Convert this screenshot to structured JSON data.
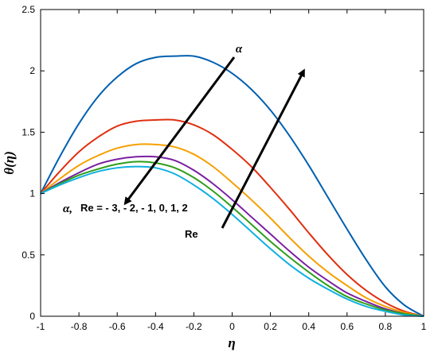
{
  "chart_data": {
    "type": "line",
    "xlabel": "η",
    "ylabel": "θ(η)",
    "xlim": [
      -1,
      1
    ],
    "ylim": [
      0,
      2.5
    ],
    "x_ticks": [
      -1,
      -0.8,
      -0.6,
      -0.4,
      -0.2,
      0,
      0.2,
      0.4,
      0.6,
      0.8,
      1
    ],
    "x_tick_labels": [
      "-1",
      "-0.8",
      "-0.6",
      "-0.4",
      "-0.2",
      "0",
      "0.2",
      "0.4",
      "0.6",
      "0.8",
      "1"
    ],
    "y_ticks": [
      0,
      0.5,
      1,
      1.5,
      2,
      2.5
    ],
    "y_tick_labels": [
      "0",
      "0.5",
      "1",
      "1.5",
      "2",
      "2.5"
    ],
    "grid": false,
    "x": [
      -1,
      -0.9,
      -0.8,
      -0.7,
      -0.6,
      -0.5,
      -0.4,
      -0.3,
      -0.2,
      -0.1,
      0,
      0.1,
      0.2,
      0.3,
      0.4,
      0.5,
      0.6,
      0.7,
      0.8,
      0.9,
      1
    ],
    "series": [
      {
        "color": "#0060B0",
        "values": [
          1.0,
          1.3,
          1.57,
          1.79,
          1.95,
          2.06,
          2.11,
          2.12,
          2.12,
          2.07,
          1.98,
          1.85,
          1.68,
          1.47,
          1.23,
          0.97,
          0.71,
          0.46,
          0.24,
          0.09,
          0.0
        ]
      },
      {
        "color": "#E03010",
        "values": [
          1.0,
          1.18,
          1.34,
          1.46,
          1.55,
          1.59,
          1.6,
          1.6,
          1.56,
          1.48,
          1.36,
          1.22,
          1.05,
          0.87,
          0.68,
          0.5,
          0.34,
          0.21,
          0.11,
          0.04,
          0.0
        ]
      },
      {
        "color": "#F5A000",
        "values": [
          1.0,
          1.12,
          1.23,
          1.31,
          1.37,
          1.4,
          1.4,
          1.38,
          1.32,
          1.22,
          1.09,
          0.95,
          0.8,
          0.64,
          0.49,
          0.36,
          0.25,
          0.15,
          0.08,
          0.03,
          0.0
        ]
      },
      {
        "color": "#7B1FA2",
        "values": [
          1.0,
          1.09,
          1.17,
          1.24,
          1.28,
          1.3,
          1.3,
          1.27,
          1.19,
          1.08,
          0.95,
          0.81,
          0.67,
          0.53,
          0.4,
          0.29,
          0.19,
          0.12,
          0.06,
          0.02,
          0.0
        ]
      },
      {
        "color": "#2E9E1A",
        "values": [
          1.0,
          1.08,
          1.15,
          1.2,
          1.24,
          1.26,
          1.25,
          1.21,
          1.13,
          1.02,
          0.89,
          0.75,
          0.61,
          0.48,
          0.36,
          0.25,
          0.16,
          0.1,
          0.05,
          0.02,
          0.0
        ]
      },
      {
        "color": "#10B0E0",
        "values": [
          1.0,
          1.07,
          1.13,
          1.18,
          1.21,
          1.22,
          1.21,
          1.16,
          1.07,
          0.96,
          0.83,
          0.69,
          0.55,
          0.42,
          0.31,
          0.22,
          0.14,
          0.08,
          0.04,
          0.01,
          0.0
        ]
      }
    ],
    "annotations": {
      "alpha_top": "α",
      "alpha_label": "α,",
      "re_list": "Re = - 3, - 2, - 1, 0, 1, 2",
      "re_label": "Re"
    }
  }
}
